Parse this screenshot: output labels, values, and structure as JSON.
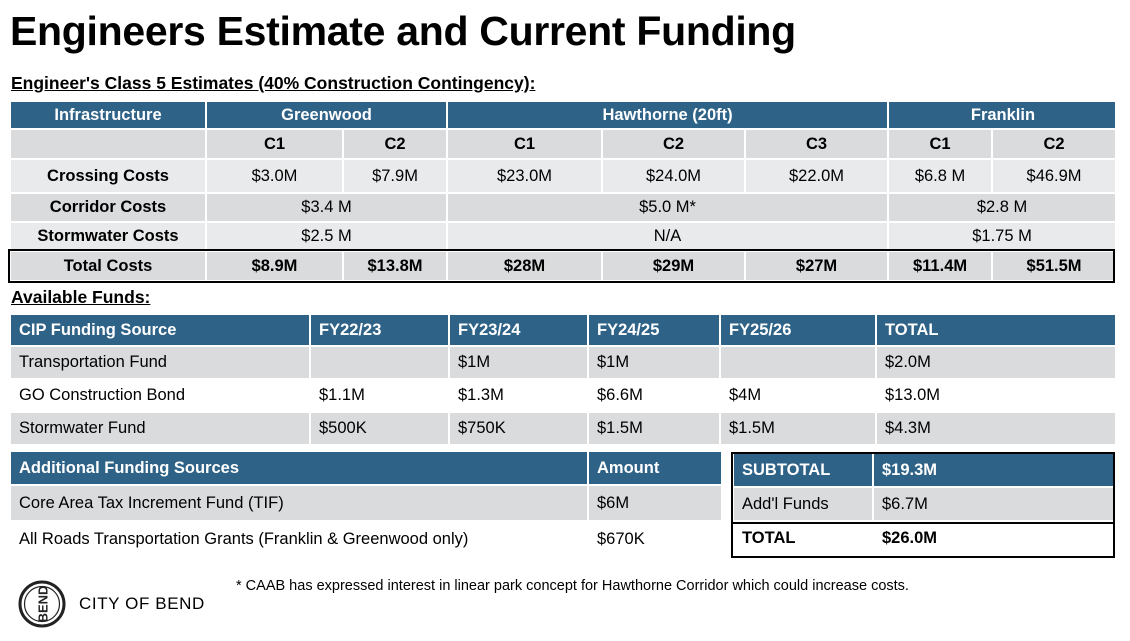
{
  "title": "Engineers Estimate and Current Funding",
  "estimates": {
    "subtitle": "Engineer's Class 5 Estimates (40% Construction Contingency):",
    "header": {
      "infrastructure": "Infrastructure",
      "greenwood": "Greenwood",
      "hawthorne": "Hawthorne (20ft)",
      "franklin": "Franklin"
    },
    "options": [
      "C1",
      "C2",
      "C1",
      "C2",
      "C3",
      "C1",
      "C2"
    ],
    "crossing": {
      "label": "Crossing Costs",
      "values": [
        "$3.0M",
        "$7.9M",
        "$23.0M",
        "$24.0M",
        "$22.0M",
        "$6.8 M",
        "$46.9M"
      ]
    },
    "corridor": {
      "label": "Corridor Costs",
      "greenwood": "$3.4 M",
      "hawthorne": "$5.0 M*",
      "franklin": "$2.8 M"
    },
    "stormwater": {
      "label": "Stormwater Costs",
      "greenwood": "$2.5 M",
      "hawthorne": "N/A",
      "franklin": "$1.75 M"
    },
    "total": {
      "label": "Total Costs",
      "values": [
        "$8.9M",
        "$13.8M",
        "$28M",
        "$29M",
        "$27M",
        "$11.4M",
        "$51.5M"
      ]
    }
  },
  "funds": {
    "subtitle": "Available Funds:",
    "header": [
      "CIP Funding Source",
      "FY22/23",
      "FY23/24",
      "FY24/25",
      "FY25/26",
      "TOTAL"
    ],
    "rows": [
      [
        "Transportation Fund",
        "",
        "$1M",
        "$1M",
        "",
        "$2.0M"
      ],
      [
        "GO Construction Bond",
        "$1.1M",
        "$1.3M",
        "$6.6M",
        "$4M",
        "$13.0M"
      ],
      [
        "Stormwater Fund",
        "$500K",
        "$750K",
        "$1.5M",
        "$1.5M",
        "$4.3M"
      ]
    ]
  },
  "additional": {
    "header": [
      "Additional Funding Sources",
      "Amount"
    ],
    "rows": [
      [
        "Core Area Tax Increment Fund (TIF)",
        "$6M"
      ],
      [
        "All Roads Transportation Grants (Franklin & Greenwood only)",
        "$670K"
      ]
    ]
  },
  "summary": {
    "subtotal_label": "SUBTOTAL",
    "subtotal_value": "$19.3M",
    "addl_label": "Add'l Funds",
    "addl_value": "$6.7M",
    "total_label": "TOTAL",
    "total_value": "$26.0M"
  },
  "footer": {
    "logo_text": "CITY OF BEND",
    "logo_mark": "BEND",
    "footnote": "* CAAB has expressed interest in linear park concept for Hawthorne Corridor which could increase costs."
  }
}
